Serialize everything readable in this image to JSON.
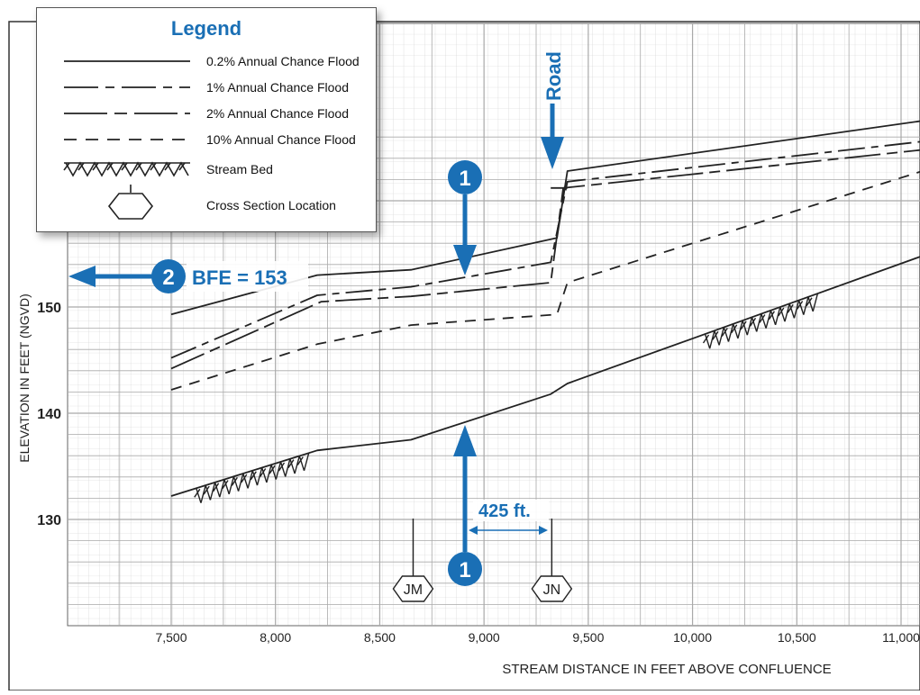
{
  "legend": {
    "title": "Legend",
    "items": [
      {
        "label": "0.2% Annual Chance Flood",
        "style": "solid"
      },
      {
        "label": "1% Annual Chance Flood",
        "style": "long-dash"
      },
      {
        "label": "2% Annual Chance Flood",
        "style": "dash-dot"
      },
      {
        "label": "10% Annual Chance Flood",
        "style": "short-dash"
      },
      {
        "label": "Stream Bed",
        "style": "hatch"
      },
      {
        "label": "Cross Section Location",
        "style": "hexagon"
      }
    ]
  },
  "annotations": {
    "marker_1": "1",
    "marker_2": "2",
    "bfe": "BFE = 153",
    "distance": "425 ft.",
    "road": "Road"
  },
  "cross_sections": [
    {
      "label": "JM",
      "x": 8660
    },
    {
      "label": "JN",
      "x": 9325
    }
  ],
  "colors": {
    "accent": "#1a6fb5",
    "grid": "#bfbfbf",
    "line": "#222222"
  },
  "chart_data": {
    "type": "line",
    "title": "",
    "xlabel": "STREAM DISTANCE IN FEET ABOVE CONFLUENCE",
    "ylabel": "ELEVATION IN FEET (NGVD)",
    "xlim": [
      7000,
      11200
    ],
    "ylim": [
      121,
      167
    ],
    "xticks": [
      7500,
      8000,
      8500,
      9000,
      9500,
      10000,
      10500,
      11000
    ],
    "xtick_labels": [
      "7,500",
      "8,000",
      "8,500",
      "9,000",
      "9,500",
      "10,000",
      "10,500",
      "11,000"
    ],
    "yticks": [
      130,
      140,
      150
    ],
    "ytick_labels": [
      "130",
      "140",
      "150"
    ],
    "grid": true,
    "series": [
      {
        "name": "0.2% Annual Chance Flood",
        "style": "solid",
        "x": [
          7500,
          8200,
          8650,
          9350,
          9400,
          11200
        ],
        "y": [
          149.3,
          153,
          153.5,
          156.5,
          162.8,
          167.8
        ]
      },
      {
        "name": "1% Annual Chance Flood",
        "style": "long-dash",
        "x": [
          7500,
          8200,
          8650,
          9320,
          9400,
          11200
        ],
        "y": [
          145.2,
          151.1,
          151.9,
          154.2,
          161.8,
          165.8
        ]
      },
      {
        "name": "2% Annual Chance Flood",
        "style": "dash-dot",
        "x": [
          7500,
          8220,
          8650,
          9320,
          9380,
          11200
        ],
        "y": [
          144.2,
          150.5,
          151,
          152.3,
          161.2,
          165
        ],
        "extra": {
          "x": [
            9320,
            9400
          ],
          "y": [
            161.2,
            161.2
          ]
        }
      },
      {
        "name": "10% Annual Chance Flood",
        "style": "short-dash",
        "x": [
          7500,
          8200,
          8650,
          9350,
          9400,
          11200
        ],
        "y": [
          142.2,
          146.5,
          148.3,
          149.3,
          152.3,
          163.4
        ]
      },
      {
        "name": "Stream Bed",
        "style": "solid",
        "x": [
          7500,
          8200,
          8650,
          9320,
          9400,
          11200
        ],
        "y": [
          132.2,
          136.5,
          137.5,
          141.8,
          142.8,
          155.5
        ]
      }
    ]
  }
}
